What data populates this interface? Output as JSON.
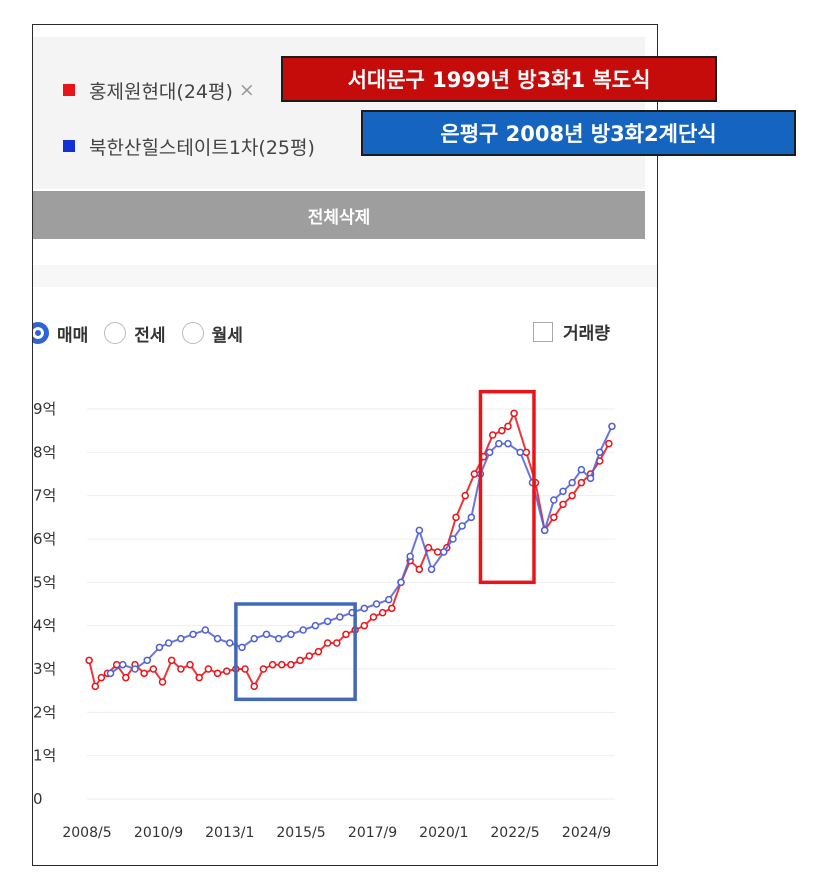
{
  "compare_list": {
    "items": [
      {
        "label": "홍제원현대(24평)",
        "suffix": "×",
        "color": "#e8141a"
      },
      {
        "label": "북한산힐스테이트1차(25평)",
        "suffix": "",
        "color": "#1330d8"
      }
    ],
    "delete_all_label": "전체삭제"
  },
  "tabs": [
    {
      "label": "매매",
      "selected": true
    },
    {
      "label": "전세",
      "selected": false
    },
    {
      "label": "월세",
      "selected": false
    }
  ],
  "volume_toggle": {
    "label": "거래량",
    "checked": false
  },
  "callouts": [
    {
      "text": "서대문구 1999년 방3화1 복도식",
      "color": "#c60b0b"
    },
    {
      "text": "은평구 2008년 방3화2계단식",
      "color": "#1565c0"
    }
  ],
  "highlight_colors": {
    "period_2013_2017": "#4169b8",
    "period_2021_2022": "#e8141a"
  },
  "chart_data": {
    "type": "line",
    "y_unit": "억",
    "ylim": [
      0,
      9
    ],
    "y_ticks": [
      0,
      1,
      2,
      3,
      4,
      5,
      6,
      7,
      8,
      9
    ],
    "y_tick_labels": [
      "0",
      "1억",
      "2억",
      "3억",
      "4억",
      "5억",
      "6억",
      "7억",
      "8억",
      "9억"
    ],
    "xlim": [
      2008.33,
      2025.6
    ],
    "x_ticks": [
      2008.33,
      2010.67,
      2013.0,
      2015.33,
      2017.67,
      2020.0,
      2022.33,
      2024.67
    ],
    "x_tick_labels": [
      "2008/5",
      "2010/9",
      "2013/1",
      "2015/5",
      "2017/9",
      "2020/1",
      "2022/5",
      "2024/9"
    ],
    "grid": true,
    "series": [
      {
        "name": "홍제원현대(24평)",
        "color": "#e8141a",
        "x": [
          2008.4,
          2008.6,
          2008.8,
          2009.0,
          2009.3,
          2009.6,
          2009.9,
          2010.2,
          2010.5,
          2010.8,
          2011.1,
          2011.4,
          2011.7,
          2012.0,
          2012.3,
          2012.6,
          2012.9,
          2013.2,
          2013.5,
          2013.8,
          2014.1,
          2014.4,
          2014.7,
          2015.0,
          2015.3,
          2015.6,
          2015.9,
          2016.2,
          2016.5,
          2016.8,
          2017.1,
          2017.4,
          2017.7,
          2018.0,
          2018.3,
          2018.6,
          2018.9,
          2019.2,
          2019.5,
          2019.8,
          2020.1,
          2020.4,
          2020.7,
          2021.0,
          2021.3,
          2021.6,
          2021.9,
          2022.1,
          2022.3,
          2022.7,
          2023.0,
          2023.3,
          2023.6,
          2023.9,
          2024.2,
          2024.5,
          2024.8,
          2025.1,
          2025.4
        ],
        "y": [
          3.2,
          2.6,
          2.8,
          2.9,
          3.1,
          2.8,
          3.1,
          2.9,
          3.0,
          2.7,
          3.2,
          3.0,
          3.1,
          2.8,
          3.0,
          2.9,
          2.95,
          3.0,
          3.0,
          2.6,
          3.0,
          3.1,
          3.1,
          3.1,
          3.2,
          3.3,
          3.4,
          3.6,
          3.6,
          3.8,
          3.9,
          4.0,
          4.2,
          4.3,
          4.4,
          5.0,
          5.5,
          5.3,
          5.8,
          5.7,
          5.8,
          6.5,
          7.0,
          7.5,
          7.9,
          8.4,
          8.5,
          8.6,
          8.9,
          8.0,
          7.3,
          6.2,
          6.5,
          6.8,
          7.0,
          7.3,
          7.5,
          7.8,
          8.2
        ]
      },
      {
        "name": "북한산힐스테이트1차(25평)",
        "color": "#4f5fd6",
        "x": [
          2009.1,
          2009.5,
          2009.9,
          2010.3,
          2010.7,
          2011.0,
          2011.4,
          2011.8,
          2012.2,
          2012.6,
          2013.0,
          2013.4,
          2013.8,
          2014.2,
          2014.6,
          2015.0,
          2015.4,
          2015.8,
          2016.2,
          2016.6,
          2017.0,
          2017.4,
          2017.8,
          2018.2,
          2018.6,
          2018.9,
          2019.2,
          2019.6,
          2020.0,
          2020.3,
          2020.6,
          2020.9,
          2021.2,
          2021.5,
          2021.8,
          2022.1,
          2022.5,
          2022.9,
          2023.3,
          2023.6,
          2023.9,
          2024.2,
          2024.5,
          2024.8,
          2025.1,
          2025.5
        ],
        "y": [
          2.9,
          3.1,
          3.0,
          3.2,
          3.5,
          3.6,
          3.7,
          3.8,
          3.9,
          3.7,
          3.6,
          3.5,
          3.7,
          3.8,
          3.7,
          3.8,
          3.9,
          4.0,
          4.1,
          4.2,
          4.3,
          4.4,
          4.5,
          4.6,
          5.0,
          5.6,
          6.2,
          5.3,
          5.7,
          6.0,
          6.3,
          6.5,
          7.5,
          8.0,
          8.2,
          8.2,
          8.0,
          7.3,
          6.2,
          6.9,
          7.1,
          7.3,
          7.6,
          7.4,
          8.0,
          8.6
        ]
      }
    ],
    "highlight_boxes": [
      {
        "x0": 2013.2,
        "x1": 2017.1,
        "y0": 2.3,
        "y1": 4.5,
        "color": "#4169b8"
      },
      {
        "x0": 2021.2,
        "x1": 2022.95,
        "y0": 5.0,
        "y1": 9.4,
        "color": "#e8141a"
      }
    ]
  }
}
